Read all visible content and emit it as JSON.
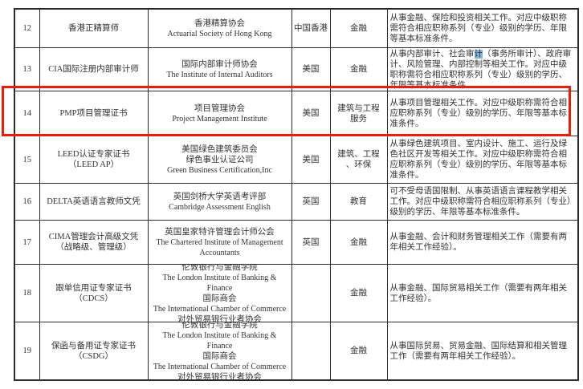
{
  "annotation": {
    "type": "red-rectangle",
    "color": "#ea1d0b",
    "highlighted_row_no": "14"
  },
  "search_highlight": {
    "char": "计",
    "color": "#7fb5dc",
    "located_in_row_no": "13"
  },
  "table": {
    "rows": [
      {
        "no": "12",
        "name": [
          "香港正精算师"
        ],
        "org": [
          "香港精算协会",
          "Actuarial Society of Hong Kong"
        ],
        "country": "中国香港",
        "industry": [
          "金融"
        ],
        "desc": [
          {
            "t": "从事金融、保险和投资相关工作。对应中级职称需符合相应职称系列（专业）级别的学历、年限等基本标准条件。"
          }
        ]
      },
      {
        "no": "13",
        "name": [
          "CIA国际注册内部审计师"
        ],
        "org": [
          "国际内部审计师协会",
          "The Institute of Internal Auditors"
        ],
        "country": "美国",
        "industry": [
          "金融"
        ],
        "desc": [
          {
            "t": "从事内部审计、社会审"
          },
          {
            "t": "计",
            "hl": true
          },
          {
            "t": "（事务所审计）、政府审计、风险管理、内部控制等相关工作。对应中级职称需符合相应职称系列（专业）级别的学历、年限等基本标准条件。"
          }
        ]
      },
      {
        "no": "14",
        "name": [
          "PMP项目管理证书"
        ],
        "org": [
          "项目管理协会",
          "Project Management Institute"
        ],
        "country": "美国",
        "industry": [
          "建筑与工程",
          "服务"
        ],
        "desc": [
          {
            "t": "从事项目管理相关工作。对应中级职称需符合相应职称系列（专业）级别的学历、年限等基本标准条件。"
          }
        ]
      },
      {
        "no": "15",
        "name": [
          "LEED认证专家证书",
          "（LEED AP）"
        ],
        "org": [
          "美国绿色建筑委员会",
          "绿色事业认证公司",
          "Green Business Certification,Inc"
        ],
        "country": "美国",
        "industry": [
          "建筑、工程",
          "、环保"
        ],
        "desc": [
          {
            "t": "从事绿色建筑项目、室内设计、施工、运行及绿色社区开发等相关工作。对应中级职称需符合相应职称系列（专业）级别的学历、年限等基本标准条件。"
          }
        ]
      },
      {
        "no": "16",
        "name": [
          "DELTA英语语言教师文凭"
        ],
        "org": [
          "英国剑桥大学英语考评部",
          "Cambridge Assessment English"
        ],
        "country": "英国",
        "industry": [
          "教育"
        ],
        "desc": [
          {
            "t": "可不受母语国限制、从事英语语言课程教学相关工作。对应中级职称需符合相应职称系列（专业）级别的学历、年限等基本标准条件。"
          }
        ]
      },
      {
        "no": "17",
        "name": [
          "CIMA管理会计高级文凭",
          "（战略级、管理级）"
        ],
        "org": [
          "英国皇家特许管理会计师公会",
          "The Chartered Institute of Management",
          "Accountants"
        ],
        "country": "英国",
        "industry": [
          "金融"
        ],
        "desc": [
          {
            "t": "从事金融、会计和财务管理相关工作（需要有两年相关工作经验）。"
          }
        ]
      },
      {
        "no": "18",
        "name": [
          "跟单信用证专家证书",
          "（CDCS）"
        ],
        "org": [
          "伦敦银行与金融学院",
          "The London Institute of Banking &",
          "Finance",
          "国际商会",
          "The International Chamber of Commerce",
          "对外贸易银行业者协会"
        ],
        "country": "",
        "industry": [
          "金融"
        ],
        "desc": [
          {
            "t": "从事金融、国际贸易相关工作（需要有两年相关工作经验）。"
          }
        ]
      },
      {
        "no": "19",
        "name": [
          "保函与备用证专家证书",
          "（CSDG）"
        ],
        "org": [
          "伦敦银行与金融学院",
          "The London Institute of Banking &",
          "Finance",
          "国际商会",
          "The International Chamber of Commerce",
          "对外贸易银行业者协会"
        ],
        "country": "",
        "industry": [
          "金融"
        ],
        "desc": [
          {
            "t": "从事国际贸易、贸易金融、国际结算和相关管理工作（需要有两年相关工作经验）。"
          }
        ]
      }
    ]
  }
}
